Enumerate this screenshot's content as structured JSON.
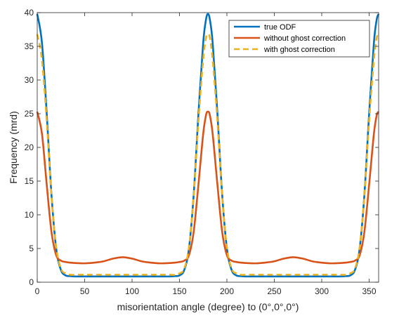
{
  "chart_data": {
    "type": "line",
    "xlabel": "misorientation angle (degree) to (0°,0°,0°)",
    "ylabel": "Frequency (mrd)",
    "xlim": [
      0,
      360
    ],
    "ylim": [
      0,
      40
    ],
    "x_ticks": [
      0,
      50,
      100,
      150,
      200,
      250,
      300,
      350
    ],
    "y_ticks": [
      0,
      5,
      10,
      15,
      20,
      25,
      30,
      35,
      40
    ],
    "grid": false,
    "box": true,
    "legend_position": "top-right",
    "series": [
      {
        "name": "true ODF",
        "color": "#0072BD",
        "style": "solid",
        "x": [
          0,
          5,
          10,
          15,
          20,
          25,
          30,
          35,
          40,
          50,
          60,
          70,
          80,
          90,
          100,
          110,
          120,
          130,
          140,
          145,
          150,
          155,
          160,
          165,
          170,
          175,
          178,
          180,
          182,
          185,
          190,
          195,
          200,
          205,
          210,
          215,
          220,
          230,
          240,
          250,
          260,
          270,
          280,
          290,
          300,
          310,
          320,
          325,
          330,
          335,
          340,
          345,
          350,
          355,
          358,
          360
        ],
        "y": [
          39.8,
          35.5,
          25.0,
          13.0,
          5.0,
          1.8,
          1.0,
          0.9,
          0.85,
          0.85,
          0.85,
          0.85,
          0.85,
          0.85,
          0.85,
          0.85,
          0.85,
          0.85,
          0.85,
          0.9,
          1.0,
          1.8,
          5.0,
          13.0,
          25.0,
          35.5,
          39.0,
          39.8,
          39.0,
          35.5,
          25.0,
          13.0,
          5.0,
          1.8,
          1.0,
          0.9,
          0.85,
          0.85,
          0.85,
          0.85,
          0.85,
          0.85,
          0.85,
          0.85,
          0.85,
          0.85,
          0.85,
          0.9,
          1.0,
          1.8,
          5.0,
          13.0,
          25.0,
          35.5,
          39.0,
          39.8
        ]
      },
      {
        "name": "without ghost correction",
        "color": "#D95319",
        "style": "solid",
        "x": [
          0,
          5,
          10,
          15,
          20,
          25,
          30,
          35,
          40,
          50,
          60,
          70,
          80,
          90,
          100,
          110,
          120,
          130,
          140,
          145,
          150,
          155,
          160,
          165,
          170,
          175,
          178,
          180,
          182,
          185,
          190,
          195,
          200,
          205,
          210,
          215,
          220,
          230,
          240,
          250,
          260,
          270,
          280,
          290,
          300,
          310,
          320,
          325,
          330,
          335,
          340,
          345,
          350,
          355,
          358,
          360
        ],
        "y": [
          25.3,
          22.0,
          14.5,
          7.5,
          4.0,
          3.2,
          3.0,
          2.9,
          2.85,
          2.8,
          2.9,
          3.1,
          3.5,
          3.7,
          3.5,
          3.1,
          2.9,
          2.8,
          2.85,
          2.9,
          3.0,
          3.2,
          4.0,
          7.5,
          14.5,
          22.0,
          24.8,
          25.3,
          24.8,
          22.0,
          14.5,
          7.5,
          4.0,
          3.2,
          3.0,
          2.9,
          2.85,
          2.8,
          2.9,
          3.1,
          3.5,
          3.7,
          3.5,
          3.1,
          2.9,
          2.8,
          2.85,
          2.9,
          3.0,
          3.2,
          4.0,
          7.5,
          14.5,
          22.0,
          24.8,
          25.3
        ]
      },
      {
        "name": "with ghost correction",
        "color": "#EDB120",
        "style": "dashed",
        "x": [
          0,
          5,
          10,
          15,
          20,
          25,
          30,
          35,
          40,
          50,
          60,
          70,
          80,
          90,
          100,
          110,
          120,
          130,
          140,
          145,
          150,
          155,
          160,
          165,
          170,
          175,
          178,
          180,
          182,
          185,
          190,
          195,
          200,
          205,
          210,
          215,
          220,
          230,
          240,
          250,
          260,
          270,
          280,
          290,
          300,
          310,
          320,
          325,
          330,
          335,
          340,
          345,
          350,
          355,
          358,
          360
        ],
        "y": [
          36.8,
          33.0,
          24.0,
          12.8,
          5.2,
          2.0,
          1.3,
          1.1,
          1.1,
          1.1,
          1.1,
          1.1,
          1.1,
          1.1,
          1.1,
          1.1,
          1.1,
          1.1,
          1.1,
          1.1,
          1.3,
          2.0,
          5.2,
          12.8,
          24.0,
          33.0,
          36.3,
          36.8,
          36.3,
          33.0,
          24.0,
          12.8,
          5.2,
          2.0,
          1.3,
          1.1,
          1.1,
          1.1,
          1.1,
          1.1,
          1.1,
          1.1,
          1.1,
          1.1,
          1.1,
          1.1,
          1.1,
          1.1,
          1.3,
          2.0,
          5.2,
          12.8,
          24.0,
          33.0,
          36.3,
          36.8
        ]
      }
    ]
  }
}
